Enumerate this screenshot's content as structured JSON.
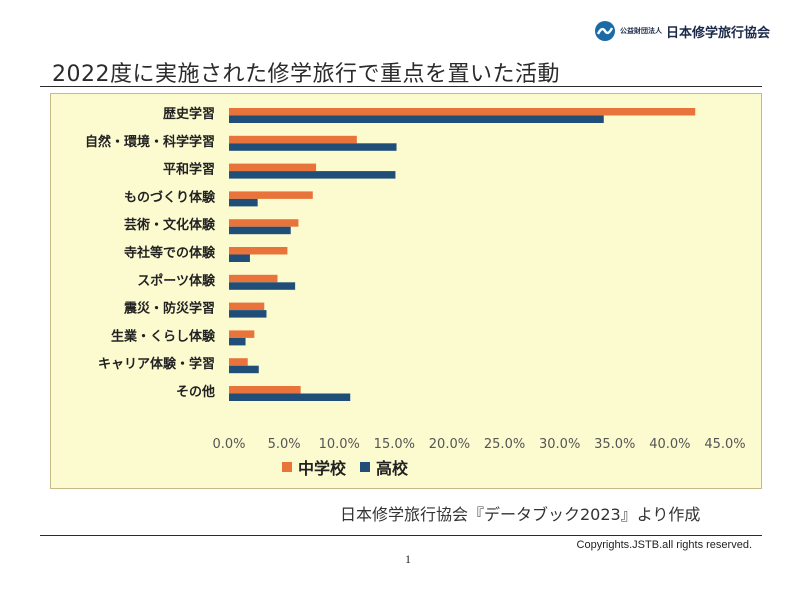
{
  "logo": {
    "small_text": "公益財団法人",
    "org_name": "日本修学旅行協会"
  },
  "title": "2022度に実施された修学旅行で重点を置いた活動",
  "source_text": "日本修学旅行協会『データブック2023』より作成",
  "copyright": "Copyrights.JSTB.all rights reserved.",
  "page_number": "1",
  "colors": {
    "middle_school": "#e8743b",
    "high_school": "#1f4e79",
    "chart_bg": "#fcfbd0"
  },
  "chart_data": {
    "type": "bar",
    "orientation": "horizontal",
    "title": "",
    "xlabel": "",
    "ylabel": "",
    "categories": [
      "歴史学習",
      "自然・環境・科学学習",
      "平和学習",
      "ものづくり体験",
      "芸術・文化体験",
      "寺社等での体験",
      "スポーツ体験",
      "震災・防災学習",
      "生業・くらし体験",
      "キャリア体験・学習",
      "その他"
    ],
    "series": [
      {
        "name": "中学校",
        "values": [
          42.3,
          11.6,
          7.9,
          7.6,
          6.3,
          5.3,
          4.4,
          3.2,
          2.3,
          1.7,
          6.5
        ]
      },
      {
        "name": "高校",
        "values": [
          34.0,
          15.2,
          15.1,
          2.6,
          5.6,
          1.9,
          6.0,
          3.4,
          1.5,
          2.7,
          11.0
        ]
      }
    ],
    "xlim": [
      0,
      45
    ],
    "ticks": [
      "0.0%",
      "5.0%",
      "10.0%",
      "15.0%",
      "20.0%",
      "25.0%",
      "30.0%",
      "35.0%",
      "40.0%",
      "45.0%"
    ],
    "legend_position": "bottom"
  }
}
